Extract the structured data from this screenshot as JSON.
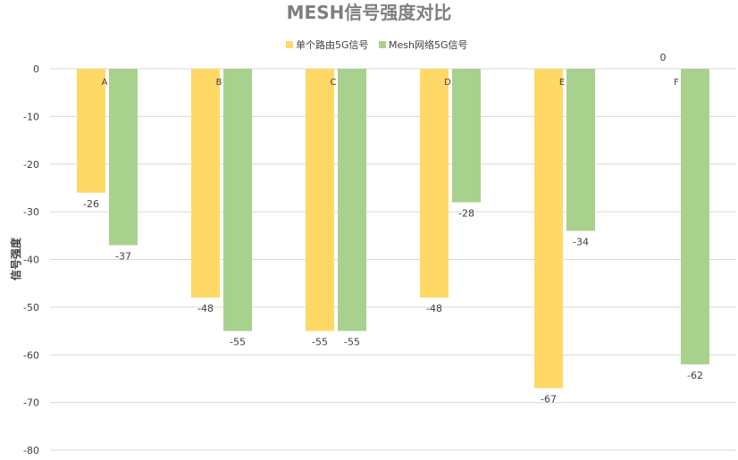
{
  "chart_data": {
    "type": "bar",
    "title": "MESH信号强度对比",
    "ylabel": "信号强度",
    "xlabel": "",
    "categories": [
      "A",
      "B",
      "C",
      "D",
      "E",
      "F"
    ],
    "series": [
      {
        "name": "单个路由5G信号",
        "color": "#ffd966",
        "values": [
          -26,
          -48,
          -55,
          -48,
          -67,
          0
        ]
      },
      {
        "name": "Mesh网络5G信号",
        "color": "#a9d18e",
        "values": [
          -37,
          -55,
          -55,
          -28,
          -34,
          -62
        ]
      }
    ],
    "ylim": [
      -80,
      0
    ],
    "yticks": [
      0,
      -10,
      -20,
      -30,
      -40,
      -50,
      -60,
      -70,
      -80
    ],
    "grid": true,
    "legend": "top"
  }
}
